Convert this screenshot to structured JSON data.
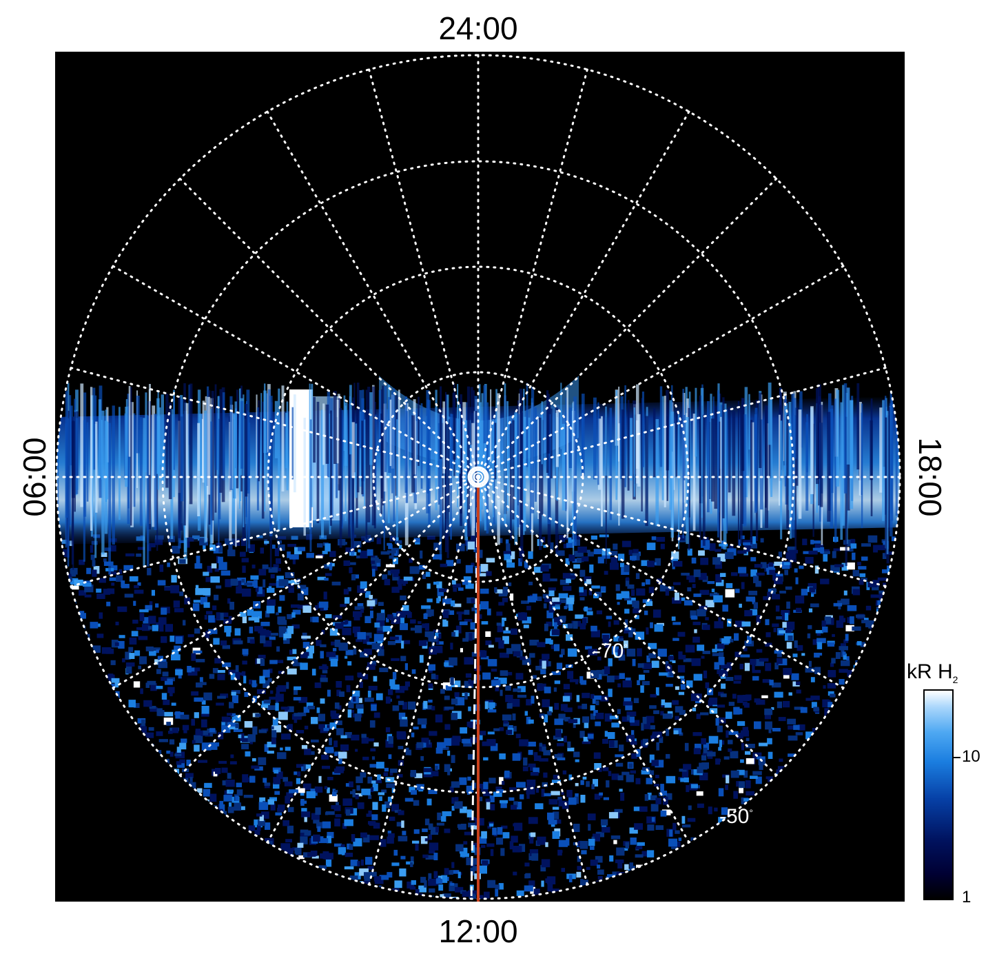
{
  "local_time_labels": {
    "top": "24:00",
    "bottom": "12:00",
    "left": "06:00",
    "right": "18:00"
  },
  "latitude_labels": {
    "lat70": "-70",
    "lat50": "-50",
    "degree_symbol": "°"
  },
  "colorbar": {
    "unit": "kR H",
    "unit_subscript": "2",
    "ticks": [
      "10",
      "1"
    ],
    "scale": "log",
    "range": [
      1,
      30
    ]
  },
  "colors": {
    "background": "#000000",
    "grid": "#ffffff",
    "meridian_line": "#c8401c",
    "aurora_low": "#00125e",
    "aurora_mid": "#1b7ee0",
    "aurora_high": "#ffffff"
  }
}
